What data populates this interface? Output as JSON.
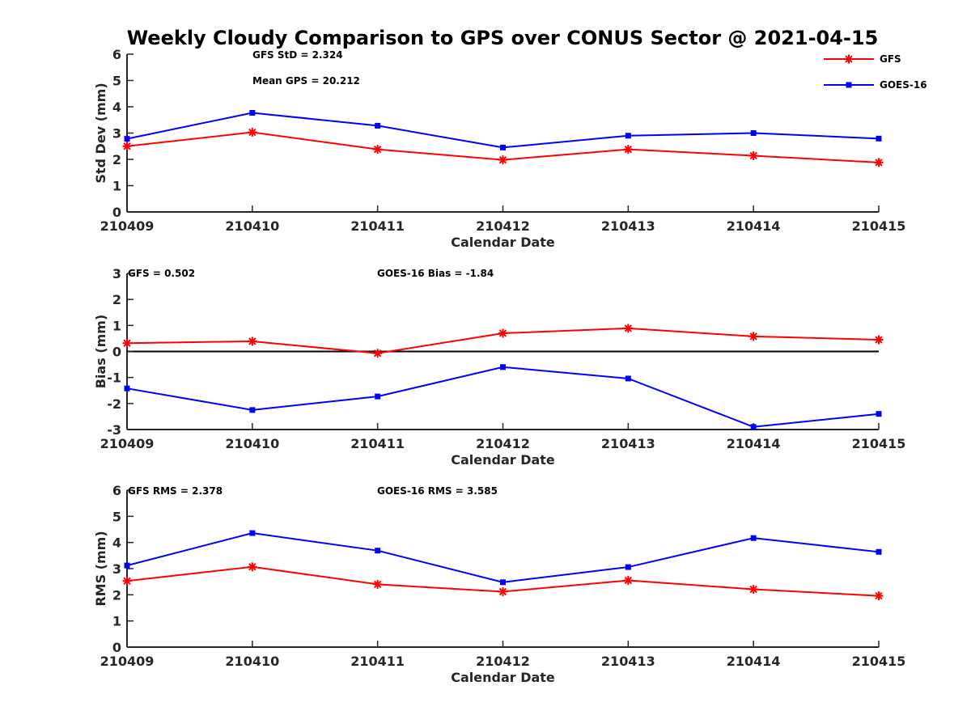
{
  "title": "Weekly Cloudy Comparison to GPS over CONUS Sector @ 2021-04-15",
  "legend": {
    "placement": "top-right",
    "entries": [
      {
        "name": "GFS",
        "color": "#ff0000",
        "marker": "asterisk"
      },
      {
        "name": "GOES-16",
        "color": "#0000ff",
        "marker": "square"
      }
    ]
  },
  "chart_data": [
    {
      "type": "line",
      "categories": [
        "210409",
        "210410",
        "210411",
        "210412",
        "210413",
        "210414",
        "210415"
      ],
      "xlabel": "Calendar Date",
      "ylabel": "Std Dev (mm)",
      "ylim": [
        0,
        6
      ],
      "yticks": [
        "0",
        "1",
        "2",
        "3",
        "4",
        "5",
        "6"
      ],
      "grid": false,
      "series": [
        {
          "name": "GFS",
          "color": "#ff0000",
          "marker": "asterisk",
          "values": [
            2.5,
            3.03,
            2.38,
            1.98,
            2.38,
            2.14,
            1.88
          ]
        },
        {
          "name": "GOES-16",
          "color": "#0000ff",
          "marker": "square",
          "values": [
            2.78,
            3.77,
            3.28,
            2.45,
            2.9,
            3.0,
            2.79
          ]
        }
      ],
      "annotations": [
        "GFS StD = 2.324",
        "Mean GPS = 20.212"
      ]
    },
    {
      "type": "line",
      "categories": [
        "210409",
        "210410",
        "210411",
        "210412",
        "210413",
        "210414",
        "210415"
      ],
      "xlabel": "Calendar Date",
      "ylabel": "Bias (mm)",
      "ylim": [
        -3,
        3
      ],
      "yticks": [
        "-3",
        "-2",
        "-1",
        "0",
        "1",
        "2",
        "3"
      ],
      "grid": false,
      "zero_line": true,
      "series": [
        {
          "name": "GFS",
          "color": "#ff0000",
          "marker": "asterisk",
          "values": [
            0.32,
            0.39,
            -0.07,
            0.7,
            0.89,
            0.58,
            0.45
          ]
        },
        {
          "name": "GOES-16",
          "color": "#0000ff",
          "marker": "square",
          "values": [
            -1.42,
            -2.25,
            -1.73,
            -0.6,
            -1.04,
            -2.9,
            -2.4
          ]
        }
      ],
      "annotations": [
        "GFS = 0.502",
        "GOES-16 Bias  = -1.84"
      ]
    },
    {
      "type": "line",
      "categories": [
        "210409",
        "210410",
        "210411",
        "210412",
        "210413",
        "210414",
        "210415"
      ],
      "xlabel": "Calendar Date",
      "ylabel": "RMS (mm)",
      "ylim": [
        0,
        6
      ],
      "yticks": [
        "0",
        "1",
        "2",
        "3",
        "4",
        "5",
        "6"
      ],
      "grid": false,
      "series": [
        {
          "name": "GFS",
          "color": "#ff0000",
          "marker": "asterisk",
          "values": [
            2.53,
            3.07,
            2.4,
            2.12,
            2.55,
            2.21,
            1.96
          ]
        },
        {
          "name": "GOES-16",
          "color": "#0000ff",
          "marker": "square",
          "values": [
            3.12,
            4.36,
            3.69,
            2.48,
            3.06,
            4.17,
            3.64
          ]
        }
      ],
      "annotations": [
        "GFS RMS = 2.378",
        "GOES-16 RMS = 3.585"
      ]
    }
  ]
}
